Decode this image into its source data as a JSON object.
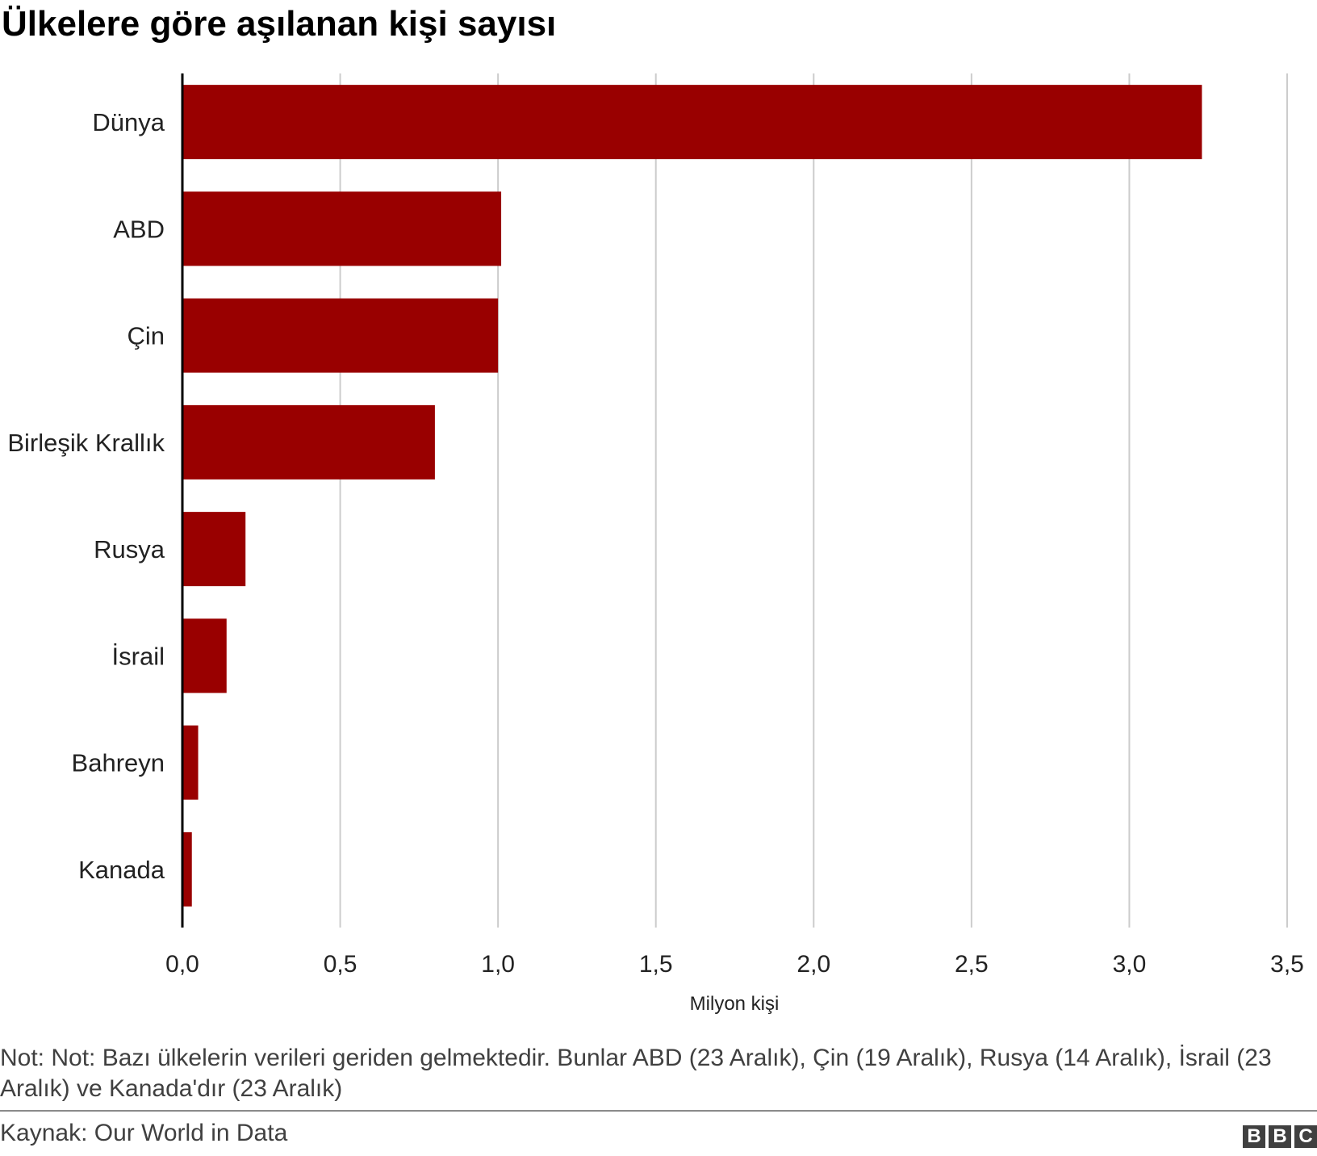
{
  "chart_data": {
    "type": "bar",
    "orientation": "horizontal",
    "title": "Ülkelere göre aşılanan kişi sayısı",
    "categories": [
      "Dünya",
      "ABD",
      "Çin",
      "Birleşik Krallık",
      "Rusya",
      "İsrail",
      "Bahreyn",
      "Kanada"
    ],
    "values": [
      3.23,
      1.01,
      1.0,
      0.8,
      0.2,
      0.14,
      0.05,
      0.03
    ],
    "xlabel": "Milyon kişi",
    "xlim": [
      0,
      3.5
    ],
    "x_ticks": [
      "0,0",
      "0,5",
      "1,0",
      "1,5",
      "2,0",
      "2,5",
      "3,0",
      "3,5"
    ],
    "grid": "vertical",
    "legend": "none",
    "bar_color": "#990000"
  },
  "note": "Not: Not: Bazı ülkelerin verileri geriden gelmektedir. Bunlar ABD (23 Aralık), Çin (19 Aralık), Rusya (14 Aralık), İsrail (23 Aralık) ve Kanada'dır (23 Aralık)",
  "source": "Kaynak: Our World in Data",
  "logo": {
    "letters": [
      "B",
      "B",
      "C"
    ]
  }
}
